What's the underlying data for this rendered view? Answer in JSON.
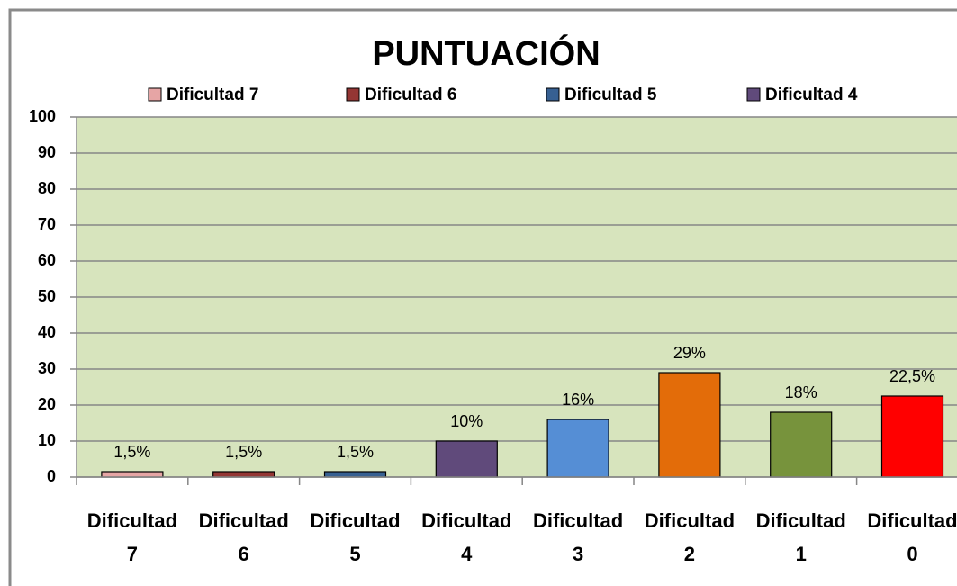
{
  "chart_data": {
    "type": "bar",
    "title": "PUNTUACIÓN",
    "categories": [
      "Dificultad 7",
      "Dificultad 6",
      "Dificultad 5",
      "Dificultad 4",
      "Dificultad 3",
      "Dificultad 2",
      "Dificultad 1",
      "Dificultad 0"
    ],
    "values": [
      1.5,
      1.5,
      1.5,
      10,
      16,
      29,
      18,
      22.5
    ],
    "value_labels": [
      "1,5%",
      "1,5%",
      "1,5%",
      "10%",
      "16%",
      "29%",
      "18%",
      "22,5%"
    ],
    "colors": [
      "#e6a5a5",
      "#943634",
      "#376092",
      "#604a7b",
      "#558ed5",
      "#e36c09",
      "#77933c",
      "#ff0000"
    ],
    "legend": [
      "Dificultad 7",
      "Dificultad 6",
      "Dificultad 5",
      "Dificultad 4"
    ],
    "ylim": [
      0,
      100
    ],
    "yticks": [
      0,
      10,
      20,
      30,
      40,
      50,
      60,
      70,
      80,
      90,
      100
    ],
    "grid": true
  }
}
